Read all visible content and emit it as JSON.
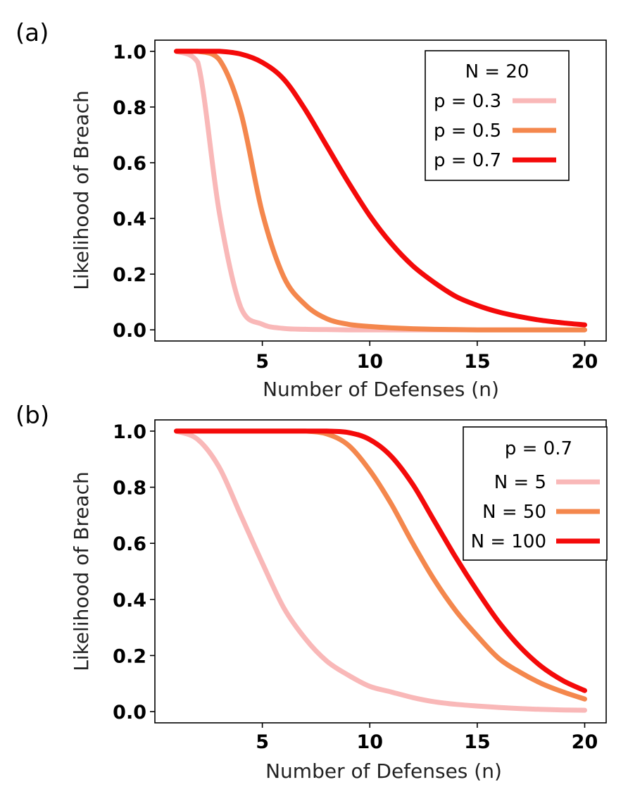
{
  "chart_data": [
    {
      "type": "line",
      "panel_label": "(a)",
      "title": "",
      "xlabel": "Number of Defenses (n)",
      "ylabel": "Likelihood of Breach",
      "xlim": [
        0,
        21
      ],
      "ylim": [
        -0.04,
        1.04
      ],
      "xticks": [
        5,
        10,
        15,
        20
      ],
      "yticks": [
        0.0,
        0.2,
        0.4,
        0.6,
        0.8,
        1.0
      ],
      "ytick_labels": [
        "0.0",
        "0.2",
        "0.4",
        "0.6",
        "0.8",
        "1.0"
      ],
      "grid": false,
      "legend": {
        "placement": "top-right",
        "title": "N = 20"
      },
      "x": [
        1,
        2,
        3,
        4,
        5,
        6,
        7,
        8,
        9,
        10,
        11,
        12,
        13,
        14,
        15,
        16,
        17,
        18,
        19,
        20
      ],
      "series": [
        {
          "name": "p = 0.3",
          "color": "#f9b8b8",
          "values": [
            1.0,
            0.96,
            0.42,
            0.08,
            0.02,
            0.005,
            0.002,
            0.001,
            0,
            0,
            0,
            0,
            0,
            0,
            0,
            0,
            0,
            0,
            0,
            0
          ]
        },
        {
          "name": "p = 0.5",
          "color": "#f4874d",
          "values": [
            1.0,
            1.0,
            0.97,
            0.78,
            0.42,
            0.19,
            0.09,
            0.04,
            0.02,
            0.012,
            0.007,
            0.004,
            0.002,
            0.001,
            0,
            0,
            0,
            0,
            0,
            0
          ]
        },
        {
          "name": "p = 0.7",
          "color": "#f40a0a",
          "values": [
            1.0,
            1.0,
            1.0,
            0.99,
            0.96,
            0.9,
            0.79,
            0.66,
            0.53,
            0.41,
            0.31,
            0.23,
            0.17,
            0.12,
            0.088,
            0.064,
            0.047,
            0.034,
            0.025,
            0.018
          ]
        }
      ]
    },
    {
      "type": "line",
      "panel_label": "(b)",
      "title": "",
      "xlabel": "Number of Defenses (n)",
      "ylabel": "Likelihood of Breach",
      "xlim": [
        0,
        21
      ],
      "ylim": [
        -0.04,
        1.04
      ],
      "xticks": [
        5,
        10,
        15,
        20
      ],
      "yticks": [
        0.0,
        0.2,
        0.4,
        0.6,
        0.8,
        1.0
      ],
      "ytick_labels": [
        "0.0",
        "0.2",
        "0.4",
        "0.6",
        "0.8",
        "1.0"
      ],
      "grid": false,
      "legend": {
        "placement": "top-right",
        "title": "p = 0.7"
      },
      "x": [
        1,
        2,
        3,
        4,
        5,
        6,
        7,
        8,
        9,
        10,
        11,
        12,
        13,
        14,
        15,
        16,
        17,
        18,
        19,
        20
      ],
      "series": [
        {
          "name": "N = 5",
          "color": "#f9b8b8",
          "values": [
            1.0,
            0.97,
            0.87,
            0.7,
            0.53,
            0.37,
            0.26,
            0.18,
            0.13,
            0.09,
            0.07,
            0.05,
            0.035,
            0.026,
            0.02,
            0.015,
            0.011,
            0.008,
            0.006,
            0.005
          ]
        },
        {
          "name": "N = 50",
          "color": "#f4874d",
          "values": [
            1.0,
            1.0,
            1.0,
            1.0,
            1.0,
            1.0,
            1.0,
            0.99,
            0.95,
            0.86,
            0.74,
            0.6,
            0.47,
            0.36,
            0.27,
            0.19,
            0.14,
            0.1,
            0.07,
            0.045
          ]
        },
        {
          "name": "N = 100",
          "color": "#f40a0a",
          "values": [
            1.0,
            1.0,
            1.0,
            1.0,
            1.0,
            1.0,
            1.0,
            1.0,
            0.995,
            0.97,
            0.91,
            0.81,
            0.68,
            0.55,
            0.43,
            0.32,
            0.23,
            0.16,
            0.11,
            0.075
          ]
        }
      ]
    }
  ]
}
